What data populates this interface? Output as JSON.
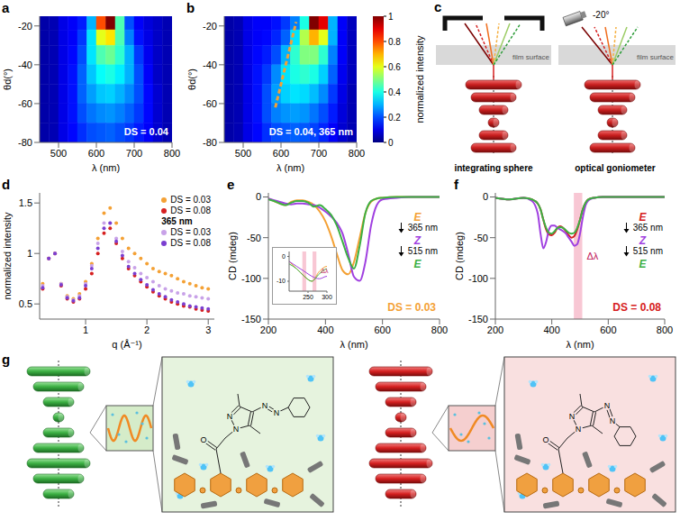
{
  "chart_data": [
    {
      "panel": "a",
      "type": "heatmap",
      "x_label": "λ (nm)",
      "y_label": "θd(°)",
      "xlim": [
        450,
        800
      ],
      "xticks": [
        500,
        600,
        700,
        800
      ],
      "ylim": [
        -80,
        -15
      ],
      "yticks": [
        -20,
        -40,
        -60,
        -80
      ],
      "x_bins": [
        450,
        475,
        500,
        525,
        550,
        575,
        600,
        625,
        650,
        675,
        700,
        725,
        750,
        775,
        800
      ],
      "y_bins": [
        -15,
        -22,
        -30,
        -40,
        -50,
        -60,
        -70,
        -80
      ],
      "cells": [
        [
          0.04,
          0.05,
          0.1,
          0.12,
          0.15,
          0.3,
          0.8,
          1.0,
          0.45,
          0.2,
          0.12,
          0.09,
          0.07,
          0.05
        ],
        [
          0.04,
          0.05,
          0.1,
          0.12,
          0.18,
          0.35,
          0.6,
          0.65,
          0.45,
          0.25,
          0.14,
          0.1,
          0.07,
          0.05
        ],
        [
          0.04,
          0.05,
          0.1,
          0.13,
          0.2,
          0.35,
          0.45,
          0.48,
          0.42,
          0.3,
          0.18,
          0.11,
          0.07,
          0.05
        ],
        [
          0.04,
          0.05,
          0.1,
          0.14,
          0.22,
          0.32,
          0.38,
          0.4,
          0.36,
          0.3,
          0.2,
          0.12,
          0.07,
          0.05
        ],
        [
          0.04,
          0.05,
          0.1,
          0.14,
          0.22,
          0.28,
          0.32,
          0.33,
          0.3,
          0.26,
          0.2,
          0.13,
          0.08,
          0.05
        ],
        [
          0.04,
          0.05,
          0.1,
          0.14,
          0.2,
          0.24,
          0.26,
          0.27,
          0.25,
          0.22,
          0.18,
          0.13,
          0.08,
          0.05
        ],
        [
          0.04,
          0.05,
          0.1,
          0.13,
          0.17,
          0.2,
          0.21,
          0.22,
          0.2,
          0.18,
          0.15,
          0.12,
          0.08,
          0.05
        ]
      ],
      "annotation": "DS = 0.04"
    },
    {
      "panel": "b",
      "type": "heatmap",
      "x_label": "λ (nm)",
      "y_label": "θd(°)",
      "xlim": [
        450,
        800
      ],
      "xticks": [
        500,
        600,
        700,
        800
      ],
      "ylim": [
        -80,
        -15
      ],
      "yticks": [
        -20,
        -40,
        -60,
        -80
      ],
      "x_bins": [
        450,
        475,
        500,
        525,
        550,
        575,
        600,
        625,
        650,
        675,
        700,
        725,
        750,
        775,
        800
      ],
      "y_bins": [
        -15,
        -22,
        -30,
        -40,
        -50,
        -60,
        -70,
        -80
      ],
      "cells": [
        [
          0.04,
          0.05,
          0.1,
          0.12,
          0.12,
          0.14,
          0.18,
          0.25,
          0.4,
          1.0,
          0.9,
          0.3,
          0.12,
          0.06
        ],
        [
          0.04,
          0.05,
          0.1,
          0.12,
          0.13,
          0.16,
          0.22,
          0.35,
          0.55,
          0.7,
          0.6,
          0.3,
          0.12,
          0.06
        ],
        [
          0.04,
          0.05,
          0.1,
          0.13,
          0.15,
          0.2,
          0.3,
          0.42,
          0.5,
          0.5,
          0.42,
          0.25,
          0.12,
          0.06
        ],
        [
          0.04,
          0.05,
          0.1,
          0.14,
          0.18,
          0.26,
          0.35,
          0.4,
          0.42,
          0.4,
          0.33,
          0.22,
          0.11,
          0.06
        ],
        [
          0.04,
          0.05,
          0.1,
          0.14,
          0.2,
          0.28,
          0.33,
          0.35,
          0.34,
          0.31,
          0.26,
          0.18,
          0.1,
          0.05
        ],
        [
          0.04,
          0.05,
          0.1,
          0.14,
          0.2,
          0.25,
          0.27,
          0.28,
          0.27,
          0.24,
          0.2,
          0.15,
          0.09,
          0.05
        ],
        [
          0.04,
          0.05,
          0.1,
          0.13,
          0.17,
          0.2,
          0.21,
          0.22,
          0.21,
          0.19,
          0.16,
          0.12,
          0.08,
          0.05
        ]
      ],
      "annotation": "DS = 0.04, 365 nm",
      "overlay_line": {
        "x": [
          585,
          640
        ],
        "y": [
          -62,
          -18
        ],
        "color": "#f4a135",
        "line_style": "dashed"
      },
      "colorbar": {
        "range": [
          0,
          1
        ],
        "ticks": [
          0,
          0.2,
          0.4,
          0.6,
          0.8,
          1
        ],
        "label": "normalized intensity"
      }
    },
    {
      "panel": "d",
      "type": "scatter",
      "x_label": "q (Å⁻¹)",
      "y_label": "normalized intensity",
      "xlim": [
        0.25,
        3.1
      ],
      "xticks": [
        1,
        2,
        3
      ],
      "ylim": [
        0.35,
        1.6
      ],
      "yticks": [
        0.5,
        1,
        1.5
      ],
      "legend": "upper right",
      "x": [
        0.3,
        0.4,
        0.5,
        0.6,
        0.7,
        0.8,
        0.9,
        1.0,
        1.1,
        1.2,
        1.3,
        1.4,
        1.5,
        1.6,
        1.7,
        1.8,
        1.9,
        2.0,
        2.1,
        2.2,
        2.3,
        2.4,
        2.5,
        2.6,
        2.7,
        2.8,
        2.9,
        3.0
      ],
      "series": [
        {
          "name": "DS = 0.03",
          "color": "#f4a135",
          "values": [
            0.7,
            0.95,
            1.0,
            0.7,
            0.58,
            0.55,
            0.6,
            0.72,
            0.9,
            1.15,
            1.4,
            1.45,
            1.3,
            1.15,
            1.05,
            1.0,
            0.95,
            0.9,
            0.85,
            0.82,
            0.8,
            0.78,
            0.75,
            0.72,
            0.7,
            0.68,
            0.66,
            0.65
          ]
        },
        {
          "name": "DS = 0.08",
          "color": "#d62020",
          "values": [
            0.65,
            0.95,
            1.0,
            0.68,
            0.55,
            0.52,
            0.55,
            0.65,
            0.8,
            1.0,
            1.2,
            1.25,
            1.1,
            0.95,
            0.85,
            0.78,
            0.72,
            0.67,
            0.62,
            0.58,
            0.55,
            0.52,
            0.5,
            0.48,
            0.47,
            0.45,
            0.44,
            0.43
          ]
        },
        {
          "name": "DS = 0.03",
          "condition": "365 nm",
          "color": "#c8a2e8",
          "values": [
            0.68,
            0.95,
            1.0,
            0.7,
            0.57,
            0.54,
            0.58,
            0.7,
            0.88,
            1.1,
            1.3,
            1.3,
            1.15,
            1.02,
            0.92,
            0.86,
            0.8,
            0.76,
            0.72,
            0.68,
            0.65,
            0.63,
            0.61,
            0.6,
            0.58,
            0.57,
            0.56,
            0.55
          ]
        },
        {
          "name": "DS = 0.08",
          "condition": "365 nm",
          "color": "#7b3fd0",
          "values": [
            0.66,
            0.95,
            1.0,
            0.69,
            0.56,
            0.53,
            0.56,
            0.68,
            0.85,
            1.05,
            1.25,
            1.3,
            1.12,
            0.98,
            0.87,
            0.8,
            0.74,
            0.69,
            0.64,
            0.6,
            0.57,
            0.54,
            0.52,
            0.5,
            0.48,
            0.47,
            0.46,
            0.45
          ]
        }
      ]
    },
    {
      "panel": "e",
      "type": "line",
      "x_label": "λ (nm)",
      "y_label": "CD (mdeg)",
      "xlim": [
        200,
        800
      ],
      "xticks": [
        200,
        400,
        600,
        800
      ],
      "ylim": [
        -150,
        5
      ],
      "yticks": [
        0,
        -50,
        -100,
        -150
      ],
      "legend": "right",
      "x": [
        200,
        220,
        240,
        260,
        280,
        300,
        320,
        340,
        360,
        380,
        400,
        420,
        440,
        460,
        480,
        500,
        520,
        540,
        560,
        580,
        600,
        650,
        700,
        750,
        800
      ],
      "series": [
        {
          "name": "E",
          "color": "#f4a135",
          "values": [
            -2,
            -5,
            -8,
            -10,
            -6,
            -4,
            -4,
            -6,
            -10,
            -18,
            -30,
            -48,
            -70,
            -90,
            -95,
            -80,
            -50,
            -20,
            -6,
            -2,
            -1,
            0,
            0,
            0,
            0
          ]
        },
        {
          "name": "Z",
          "color": "#a040e0",
          "values": [
            -2,
            -4,
            -6,
            -8,
            -9,
            -8,
            -8,
            -9,
            -10,
            -13,
            -18,
            -24,
            -32,
            -45,
            -70,
            -98,
            -103,
            -80,
            -35,
            -10,
            -3,
            -1,
            0,
            0,
            0
          ]
        },
        {
          "name": "E",
          "color": "#3cb043",
          "values": [
            -3,
            -5,
            -8,
            -10,
            -7,
            -5,
            -5,
            -7,
            -12,
            -10,
            -15,
            -22,
            -35,
            -55,
            -75,
            -88,
            -60,
            -20,
            -5,
            -2,
            -1,
            0,
            0,
            0,
            0
          ]
        }
      ],
      "transitions": [
        "365 nm",
        "515 nm"
      ],
      "annotation": "DS = 0.03",
      "inset": {
        "xlim": [
          200,
          300
        ],
        "xticks": [
          250,
          300
        ],
        "ylim": [
          -14,
          2
        ],
        "yticks": [
          0,
          -10
        ],
        "bands": [
          {
            "x": [
              235,
              245
            ]
          },
          {
            "x": [
              262,
              272
            ],
            "label": "Δλ"
          }
        ]
      }
    },
    {
      "panel": "f",
      "type": "line",
      "x_label": "λ (nm)",
      "y_label": "CD (mdeg)",
      "xlim": [
        200,
        800
      ],
      "xticks": [
        200,
        400,
        600,
        800
      ],
      "ylim": [
        -150,
        5
      ],
      "yticks": [
        0,
        -50,
        -100,
        -150
      ],
      "legend": "right",
      "x": [
        200,
        250,
        300,
        330,
        350,
        360,
        370,
        380,
        390,
        400,
        410,
        420,
        430,
        440,
        450,
        460,
        470,
        480,
        490,
        500,
        510,
        520,
        530,
        550,
        580,
        620,
        700,
        800
      ],
      "series": [
        {
          "name": "E",
          "color": "#d62020",
          "values": [
            -1,
            -3,
            -1,
            -3,
            -8,
            -15,
            -28,
            -40,
            -46,
            -47,
            -44,
            -38,
            -36,
            -38,
            -42,
            -47,
            -50,
            -48,
            -40,
            -28,
            -15,
            -7,
            -3,
            -1,
            0,
            0,
            0,
            0
          ]
        },
        {
          "name": "Z",
          "color": "#a040e0",
          "values": [
            -1,
            -3,
            -1,
            -5,
            -20,
            -45,
            -63,
            -55,
            -40,
            -35,
            -35,
            -38,
            -40,
            -42,
            -45,
            -50,
            -55,
            -60,
            -58,
            -45,
            -25,
            -10,
            -4,
            -1,
            0,
            0,
            0,
            0
          ]
        },
        {
          "name": "E",
          "color": "#3cb043",
          "values": [
            -1,
            -3,
            -1,
            -3,
            -8,
            -15,
            -28,
            -38,
            -44,
            -45,
            -42,
            -38,
            -37,
            -38,
            -41,
            -44,
            -45,
            -44,
            -38,
            -28,
            -15,
            -7,
            -3,
            -1,
            0,
            0,
            0,
            0
          ]
        }
      ],
      "transitions": [
        "365 nm",
        "515 nm"
      ],
      "annotation": "DS = 0.08",
      "bands": [
        {
          "x": [
            478,
            508
          ],
          "label": "Δλ"
        }
      ]
    }
  ],
  "diagrams": {
    "c": {
      "panel": "c",
      "left": {
        "label": "integrating sphere",
        "film": "film surface"
      },
      "right": {
        "label": "optical goniometer",
        "film": "film surface",
        "angle": "-20°"
      }
    },
    "g": {
      "panel": "g",
      "left": {
        "atoms": [
          "O",
          "N",
          "N",
          "N",
          "N"
        ],
        "color": "#3cb043"
      },
      "right": {
        "atoms": [
          "O",
          "N",
          "N",
          "N",
          "N"
        ],
        "color": "#d62020"
      }
    }
  }
}
